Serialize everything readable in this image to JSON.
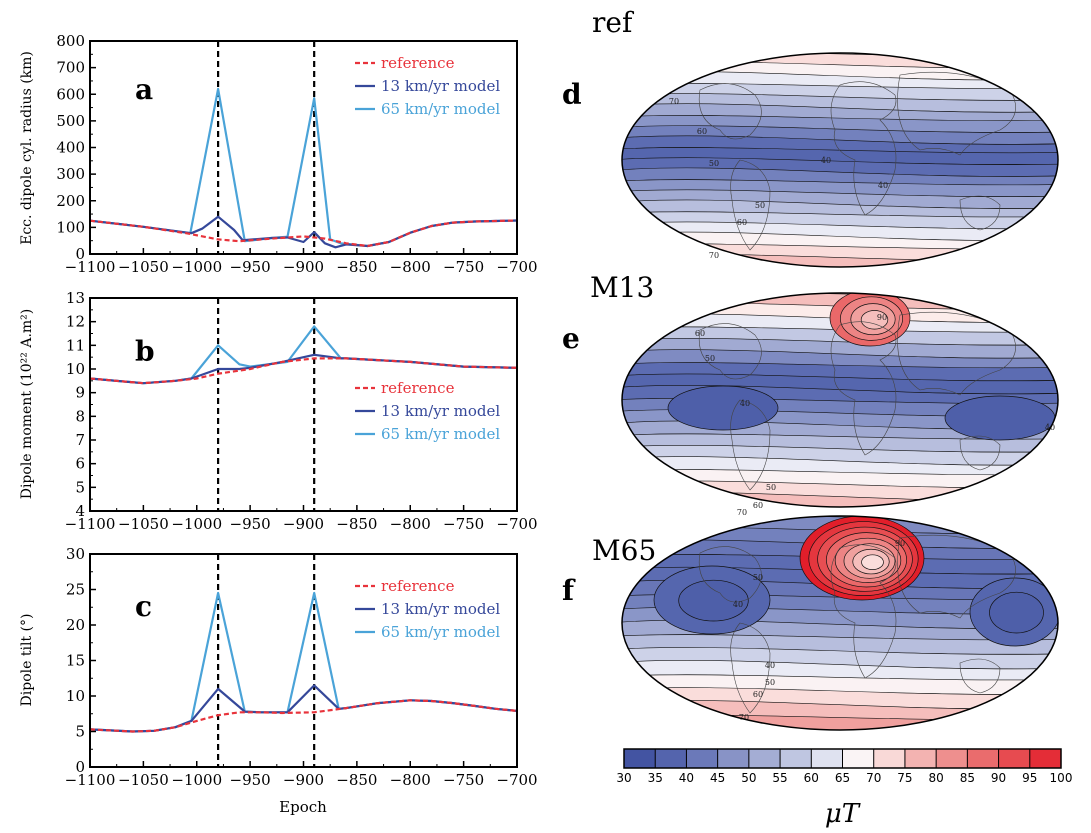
{
  "colors": {
    "reference": "#e8333b",
    "m13": "#35489a",
    "m65": "#4aa3d8",
    "blue_dark": "#4257a5",
    "red_dark": "#e8262f"
  },
  "xlabel_shared": "Epoch",
  "chart_data": [
    {
      "type": "line",
      "panel": "a",
      "ylabel": "Ecc. dipole cyl. radius (km)",
      "xlim": [
        -1100,
        -700
      ],
      "ylim": [
        0,
        800
      ],
      "xticks": [
        -1100,
        -1050,
        -1000,
        -950,
        -900,
        -850,
        -800,
        -750,
        -700
      ],
      "xtick_labels": [
        "−1100",
        "−1050",
        "−1000",
        "−950",
        "−900",
        "−850",
        "−800",
        "−750",
        "−700"
      ],
      "yticks": [
        0,
        100,
        200,
        300,
        400,
        500,
        600,
        700,
        800
      ],
      "ytick_labels": [
        "0",
        "100",
        "200",
        "300",
        "400",
        "500",
        "600",
        "700",
        "800"
      ],
      "vlines": [
        -980,
        -890
      ],
      "legend": [
        "reference",
        "13 km/yr model",
        "65 km/yr model"
      ],
      "series": [
        {
          "name": "reference",
          "style": "dashed",
          "color_key": "reference",
          "x": [
            -1100,
            -1050,
            -1010,
            -980,
            -960,
            -930,
            -900,
            -880,
            -860,
            -840,
            -820,
            -800,
            -780,
            -760,
            -740,
            -720,
            -700
          ],
          "y": [
            125,
            102,
            78,
            55,
            48,
            58,
            66,
            58,
            40,
            30,
            45,
            80,
            105,
            118,
            122,
            124,
            126
          ]
        },
        {
          "name": "13 km/yr model",
          "style": "solid",
          "color_key": "m13",
          "x": [
            -1100,
            -1050,
            -1005,
            -995,
            -980,
            -965,
            -957,
            -930,
            -915,
            -900,
            -890,
            -880,
            -870,
            -860,
            -840,
            -820,
            -800,
            -780,
            -760,
            -740,
            -720,
            -700
          ],
          "y": [
            125,
            102,
            78,
            95,
            140,
            90,
            52,
            60,
            62,
            45,
            82,
            40,
            25,
            36,
            30,
            45,
            80,
            105,
            118,
            122,
            124,
            126
          ]
        },
        {
          "name": "65 km/yr model",
          "style": "solid",
          "color_key": "m65",
          "x": [
            -1100,
            -1050,
            -1006,
            -980,
            -955,
            -930,
            -915,
            -890,
            -875,
            -865,
            -840,
            -820,
            -800,
            -780,
            -760,
            -740,
            -720,
            -700
          ],
          "y": [
            125,
            102,
            78,
            620,
            48,
            60,
            65,
            585,
            55,
            40,
            30,
            45,
            80,
            105,
            118,
            122,
            124,
            126
          ]
        }
      ]
    },
    {
      "type": "line",
      "panel": "b",
      "ylabel": "Dipole moment (10²² A.m²)",
      "xlim": [
        -1100,
        -700
      ],
      "ylim": [
        4,
        13
      ],
      "xticks": [
        -1100,
        -1050,
        -1000,
        -950,
        -900,
        -850,
        -800,
        -750,
        -700
      ],
      "xtick_labels": [
        "−1100",
        "−1050",
        "−1000",
        "−950",
        "−900",
        "−850",
        "−800",
        "−750",
        "−700"
      ],
      "yticks": [
        4,
        5,
        6,
        7,
        8,
        9,
        10,
        11,
        12,
        13
      ],
      "ytick_labels": [
        "4",
        "5",
        "6",
        "7",
        "8",
        "9",
        "10",
        "11",
        "12",
        "13"
      ],
      "vlines": [
        -980,
        -890
      ],
      "legend": [
        "reference",
        "13 km/yr model",
        "65 km/yr model"
      ],
      "series": [
        {
          "name": "reference",
          "style": "dashed",
          "color_key": "reference",
          "x": [
            -1100,
            -1050,
            -1020,
            -1000,
            -980,
            -950,
            -920,
            -890,
            -860,
            -800,
            -750,
            -700
          ],
          "y": [
            9.6,
            9.4,
            9.5,
            9.6,
            9.8,
            10.0,
            10.3,
            10.45,
            10.45,
            10.3,
            10.1,
            10.05
          ]
        },
        {
          "name": "13 km/yr model",
          "style": "solid",
          "color_key": "m13",
          "x": [
            -1100,
            -1050,
            -1020,
            -1005,
            -980,
            -960,
            -950,
            -920,
            -890,
            -865,
            -860,
            -800,
            -750,
            -700
          ],
          "y": [
            9.6,
            9.4,
            9.5,
            9.6,
            10.0,
            10.0,
            10.05,
            10.3,
            10.6,
            10.45,
            10.45,
            10.3,
            10.1,
            10.05
          ]
        },
        {
          "name": "65 km/yr model",
          "style": "solid",
          "color_key": "m65",
          "x": [
            -1100,
            -1050,
            -1020,
            -1005,
            -980,
            -960,
            -950,
            -915,
            -890,
            -865,
            -860,
            -800,
            -750,
            -700
          ],
          "y": [
            9.6,
            9.4,
            9.5,
            9.6,
            11.0,
            10.2,
            10.1,
            10.3,
            11.8,
            10.45,
            10.45,
            10.3,
            10.1,
            10.05
          ]
        }
      ]
    },
    {
      "type": "line",
      "panel": "c",
      "ylabel": "Dipole tilt (°)",
      "xlabel": "Epoch",
      "xlim": [
        -1100,
        -700
      ],
      "ylim": [
        0,
        30
      ],
      "xticks": [
        -1100,
        -1050,
        -1000,
        -950,
        -900,
        -850,
        -800,
        -750,
        -700
      ],
      "xtick_labels": [
        "−1100",
        "−1050",
        "−1000",
        "−950",
        "−900",
        "−850",
        "−800",
        "−750",
        "−700"
      ],
      "yticks": [
        0,
        5,
        10,
        15,
        20,
        25,
        30
      ],
      "ytick_labels": [
        "0",
        "5",
        "10",
        "15",
        "20",
        "25",
        "30"
      ],
      "vlines": [
        -980,
        -890
      ],
      "legend": [
        "reference",
        "13 km/yr model",
        "65 km/yr model"
      ],
      "series": [
        {
          "name": "reference",
          "style": "dashed",
          "color_key": "reference",
          "x": [
            -1100,
            -1060,
            -1040,
            -1020,
            -1000,
            -980,
            -960,
            -940,
            -920,
            -890,
            -860,
            -830,
            -800,
            -780,
            -760,
            -740,
            -720,
            -700
          ],
          "y": [
            5.3,
            5.0,
            5.1,
            5.6,
            6.5,
            7.3,
            7.7,
            7.7,
            7.6,
            7.7,
            8.3,
            9.0,
            9.4,
            9.3,
            9.0,
            8.6,
            8.2,
            7.9
          ]
        },
        {
          "name": "13 km/yr model",
          "style": "solid",
          "color_key": "m13",
          "x": [
            -1100,
            -1060,
            -1040,
            -1020,
            -1005,
            -980,
            -955,
            -940,
            -915,
            -890,
            -867,
            -860,
            -830,
            -800,
            -780,
            -760,
            -740,
            -720,
            -700
          ],
          "y": [
            5.3,
            5.0,
            5.1,
            5.6,
            6.5,
            11.0,
            7.8,
            7.7,
            7.7,
            11.5,
            8.2,
            8.3,
            9.0,
            9.4,
            9.3,
            9.0,
            8.6,
            8.2,
            7.9
          ]
        },
        {
          "name": "65 km/yr model",
          "style": "solid",
          "color_key": "m65",
          "x": [
            -1100,
            -1060,
            -1040,
            -1020,
            -1005,
            -980,
            -955,
            -940,
            -915,
            -890,
            -867,
            -860,
            -830,
            -800,
            -780,
            -760,
            -740,
            -720,
            -700
          ],
          "y": [
            5.3,
            5.0,
            5.1,
            5.6,
            6.5,
            24.5,
            7.8,
            7.7,
            7.7,
            24.5,
            8.2,
            8.3,
            9.0,
            9.4,
            9.3,
            9.0,
            8.6,
            8.2,
            7.9
          ]
        }
      ]
    },
    {
      "type": "heatmap",
      "panel": "d",
      "title": "ref",
      "projection": "aitoff-like ellipse",
      "contour_labels": [
        "70",
        "60",
        "50",
        "40",
        "40",
        "50",
        "60",
        "70"
      ],
      "bands_top_to_bottom": [
        72,
        68,
        64,
        60,
        56,
        52,
        48,
        44,
        40,
        38,
        40,
        44,
        48,
        52,
        56,
        60,
        64,
        68,
        72,
        76
      ]
    },
    {
      "type": "heatmap",
      "panel": "e",
      "title": "M13",
      "projection": "aitoff-like ellipse",
      "contour_labels": [
        "90",
        "60",
        "50",
        "40",
        "40",
        "50",
        "60",
        "70"
      ],
      "bands_top_to_bottom": [
        76,
        70,
        64,
        58,
        52,
        46,
        40,
        38,
        40,
        44,
        48,
        52,
        56,
        60,
        64,
        68,
        72,
        76
      ]
    },
    {
      "type": "heatmap",
      "panel": "f",
      "title": "M65",
      "projection": "aitoff-like ellipse",
      "contour_labels": [
        "50",
        "40",
        "40",
        "50",
        "60",
        "70",
        "90"
      ],
      "bands_top_to_bottom": [
        46,
        44,
        42,
        40,
        40,
        42,
        44,
        48,
        52,
        56,
        60,
        64,
        68,
        72,
        76,
        80
      ]
    },
    {
      "type": "colorbar",
      "range": [
        30,
        100
      ],
      "ticks": [
        30,
        35,
        40,
        45,
        50,
        55,
        60,
        65,
        70,
        75,
        80,
        85,
        90,
        95,
        100
      ],
      "tick_labels": [
        "30",
        "35",
        "40",
        "45",
        "50",
        "55",
        "60",
        "65",
        "70",
        "75",
        "80",
        "85",
        "90",
        "95",
        "100"
      ],
      "unit": "μT"
    }
  ]
}
